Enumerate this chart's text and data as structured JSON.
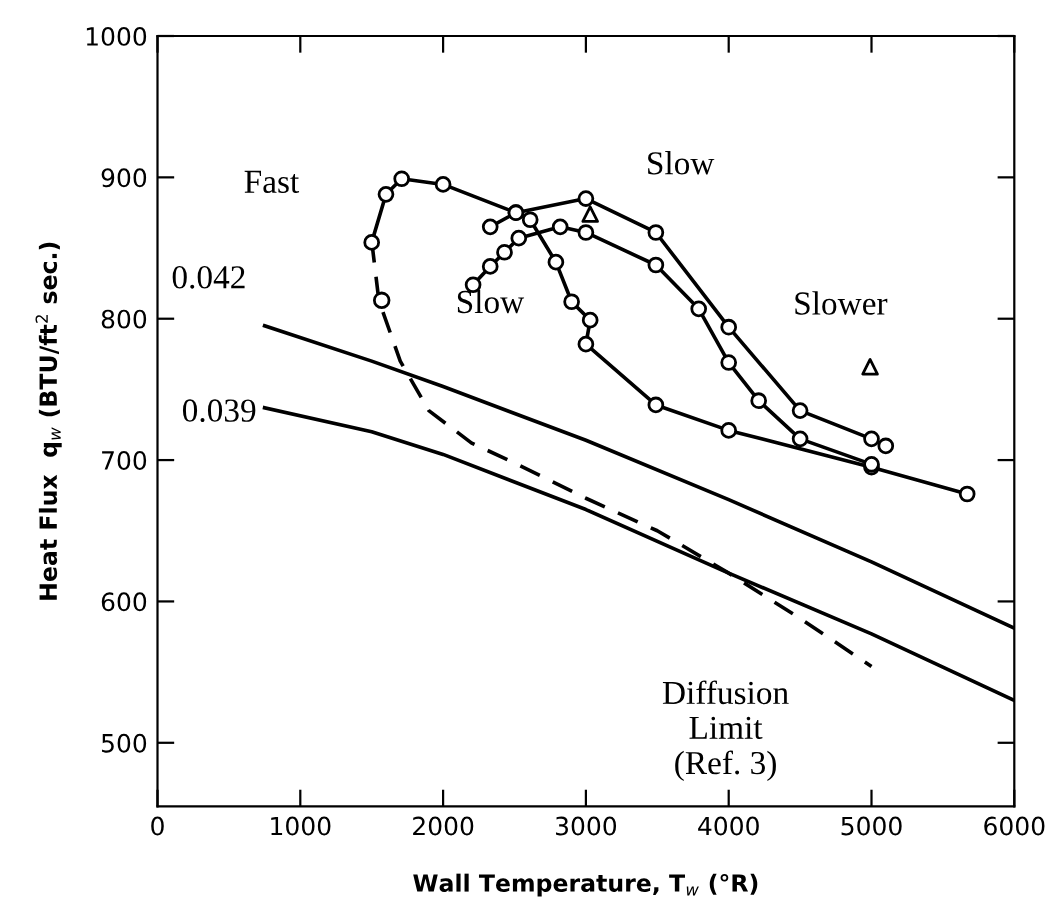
{
  "chart_data": {
    "type": "line",
    "xlabel": "Wall Temperature, T$_{w}$ (°R)",
    "ylabel": "Heat Flux  q$_{w}$ (BTU/ft$^{2}$ sec.)",
    "xlim": [
      0,
      6000
    ],
    "xticks": [
      0,
      1000,
      2000,
      3000,
      4000,
      5000,
      6000
    ],
    "ylim": [
      455,
      1000
    ],
    "yticks": [
      500,
      600,
      700,
      800,
      900,
      1000
    ],
    "grid": false,
    "series": [
      {
        "color": "#000000",
        "marker": "none",
        "line_style": "solid",
        "x": [
          750,
          1500,
          2000,
          3000,
          4000,
          5000,
          6000
        ],
        "values": [
          795,
          770,
          752,
          714,
          672,
          628,
          581
        ]
      },
      {
        "color": "#000000",
        "marker": "none",
        "line_style": "solid",
        "x": [
          750,
          1500,
          2000,
          3000,
          4000,
          5000,
          6000
        ],
        "values": [
          737,
          720,
          704,
          665,
          620,
          577,
          530
        ]
      },
      {
        "color": "#000000",
        "marker": "none",
        "line_style": "dashed",
        "x": [
          1500,
          1550,
          1700,
          1900,
          2200,
          2500,
          3000,
          3500,
          4000,
          4500,
          5000
        ],
        "values": [
          855,
          813,
          770,
          735,
          712,
          698,
          673,
          650,
          620,
          588,
          554
        ]
      },
      {
        "color": "#000000",
        "marker": "circle",
        "line_style": "solid",
        "x": [
          1500,
          1600,
          1710,
          2000,
          2510,
          2610,
          2790,
          2900,
          3030,
          3000,
          3490,
          4000,
          5000,
          5670
        ],
        "values": [
          854,
          888,
          899,
          895,
          875,
          870,
          840,
          812,
          799,
          782,
          739,
          721,
          695,
          676
        ]
      },
      {
        "color": "#000000",
        "marker": "circle",
        "line_style": "solid",
        "x": [
          2210,
          2330,
          2430,
          2530,
          2820,
          3000,
          3490,
          3790,
          4000,
          4210,
          4500,
          5000
        ],
        "values": [
          824,
          837,
          847,
          857,
          865,
          861,
          838,
          807,
          769,
          742,
          715,
          697
        ]
      },
      {
        "color": "#000000",
        "marker": "circle",
        "line_style": "solid",
        "x": [
          2330,
          2510,
          3000,
          3490,
          4000,
          4500,
          5000,
          5100
        ],
        "values": [
          865,
          875,
          885,
          861,
          794,
          735,
          715,
          710
        ]
      },
      {
        "type": "scatter",
        "color": "#000000",
        "marker": "circle",
        "x": [
          1570
        ],
        "values": [
          813
        ]
      },
      {
        "type": "scatter",
        "color": "#000000",
        "marker": "triangle",
        "x": [
          3030,
          4990
        ],
        "values": [
          874,
          766
        ]
      }
    ],
    "annotations": [
      "Fast",
      "Slow",
      "Slow",
      "Slower",
      "0.042",
      "0.039",
      "Diffusion\nLimit\n(Ref. 3)"
    ]
  }
}
